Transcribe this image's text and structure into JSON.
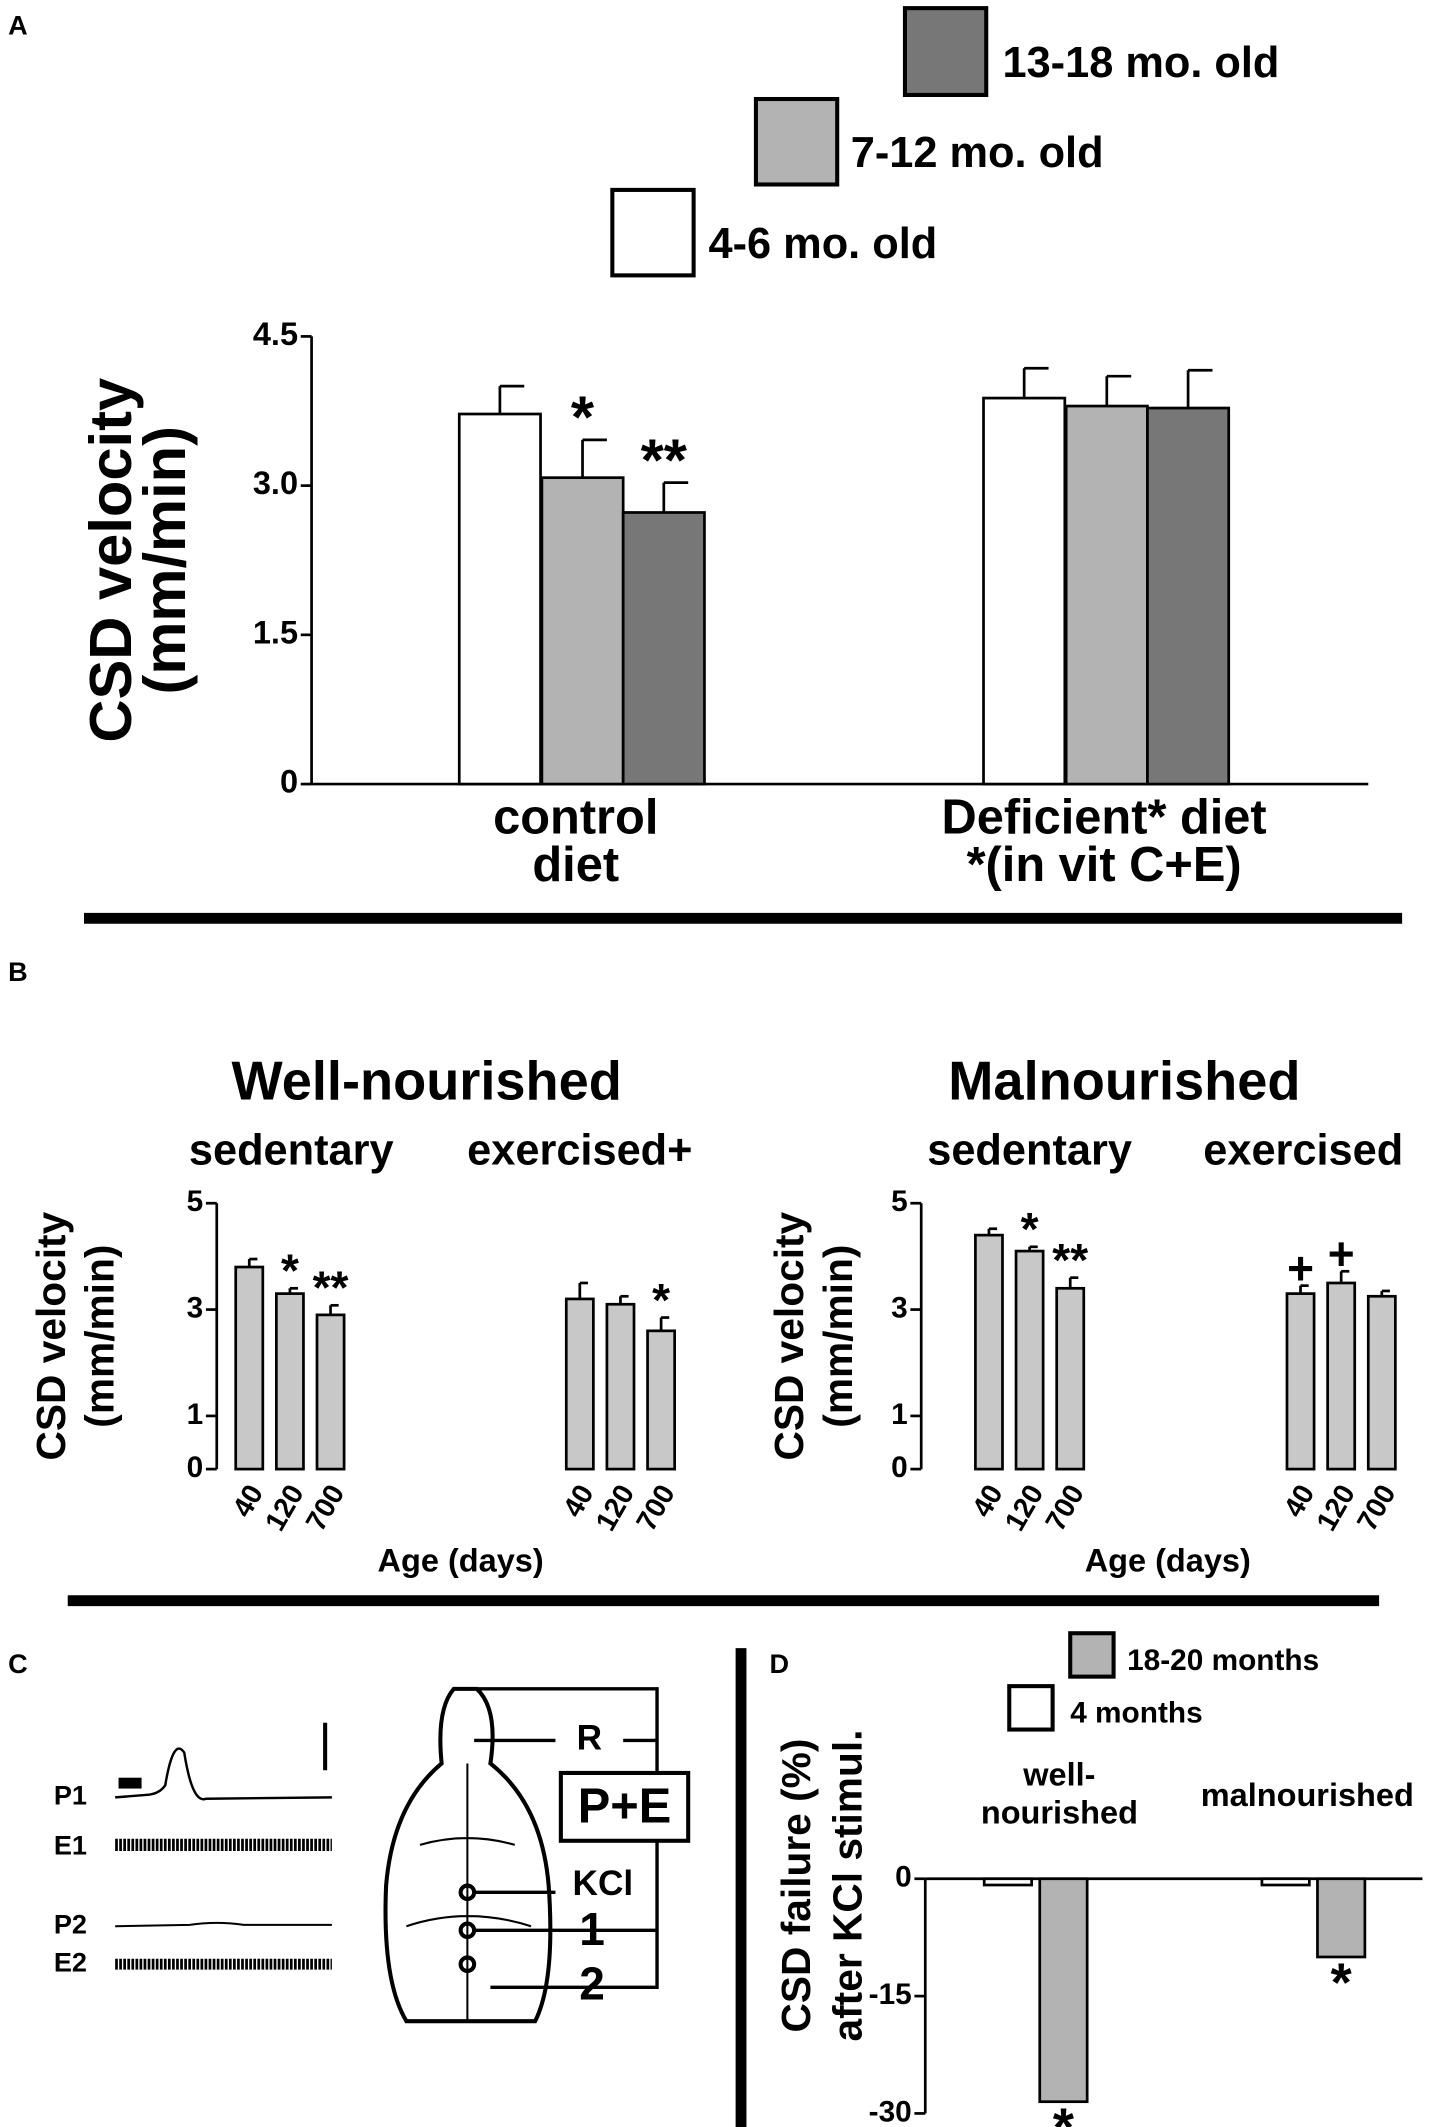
{
  "panel_labels": [
    "A",
    "B",
    "C",
    "D"
  ],
  "chart_data": [
    {
      "type": "bar",
      "ylabel": [
        "CSD velocity",
        "(mm/min)"
      ],
      "categories": [
        [
          "control",
          "diet"
        ],
        [
          "Deficient* diet",
          "*(in vit C+E)"
        ]
      ],
      "series": [
        {
          "name": "4-6 mo. old",
          "color": "#ffffff",
          "values": [
            3.72,
            3.88
          ],
          "errors": [
            0.28,
            0.3
          ],
          "annotations": [
            null,
            null
          ]
        },
        {
          "name": "7-12 mo. old",
          "color": "#b3b3b3",
          "values": [
            3.08,
            3.8
          ],
          "errors": [
            0.38,
            0.3
          ],
          "annotations": [
            "*",
            null
          ]
        },
        {
          "name": "13-18 mo. old",
          "color": "#777777",
          "values": [
            2.73,
            3.78
          ],
          "errors": [
            0.3,
            0.38
          ],
          "annotations": [
            "**",
            null
          ]
        }
      ],
      "ylim": [
        0,
        4.5
      ],
      "yticks": [
        0,
        1.5,
        {
          "value": 3,
          "label": "3.0"
        },
        4.5
      ]
    },
    {
      "type": "bar",
      "title": "Well-nourished",
      "groups": [
        "sedentary",
        "exercised+"
      ],
      "ylabel": [
        "CSD velocity",
        "(mm/min)"
      ],
      "xlabel": "Age (days)",
      "categories": [
        "40",
        "120",
        "700",
        "40",
        "120",
        "700"
      ],
      "series": [
        {
          "color": "#c8c8c8",
          "values": [
            3.8,
            3.3,
            2.9,
            3.2,
            3.1,
            2.6
          ],
          "errors": [
            0.15,
            0.1,
            0.18,
            0.3,
            0.15,
            0.25
          ],
          "annotations": [
            null,
            "*",
            "**",
            null,
            null,
            "*"
          ]
        }
      ],
      "ylim": [
        0,
        5
      ],
      "yticks": [
        0,
        1,
        3,
        5
      ]
    },
    {
      "type": "bar",
      "title": "Malnourished",
      "groups": [
        "sedentary",
        "exercised"
      ],
      "ylabel": [
        "CSD velocity",
        "(mm/min)"
      ],
      "xlabel": "Age (days)",
      "categories": [
        "40",
        "120",
        "700",
        "40",
        "120",
        "700"
      ],
      "series": [
        {
          "color": "#c8c8c8",
          "values": [
            4.4,
            4.1,
            3.4,
            3.3,
            3.5,
            3.25
          ],
          "errors": [
            0.12,
            0.08,
            0.2,
            0.15,
            0.22,
            0.1
          ],
          "annotations": [
            null,
            "*",
            "**",
            "+",
            "+",
            null
          ]
        }
      ],
      "ylim": [
        0,
        5
      ],
      "yticks": [
        0,
        1,
        3,
        5
      ]
    },
    {
      "type": "bar",
      "ylabel": [
        "CSD failure (%)",
        "after KCl stimul."
      ],
      "categories": [
        [
          "well-",
          "nourished"
        ],
        [
          "malnourished"
        ]
      ],
      "series": [
        {
          "name": "4 months",
          "color": "#ffffff",
          "values": [
            -0.8,
            -0.8
          ],
          "annotations": [
            null,
            null
          ]
        },
        {
          "name": "18-20 months",
          "color": "#b3b3b3",
          "values": [
            -28.5,
            -10
          ],
          "annotations": [
            "*",
            "*"
          ]
        }
      ],
      "ylim": [
        -30,
        0
      ],
      "yticks": [
        0,
        -15,
        -30
      ]
    }
  ],
  "diagram": {
    "traces": [
      "P1",
      "E1",
      "P2",
      "E2"
    ],
    "sites": [
      "R",
      "KCl",
      "1",
      "2"
    ],
    "box": "P+E"
  }
}
